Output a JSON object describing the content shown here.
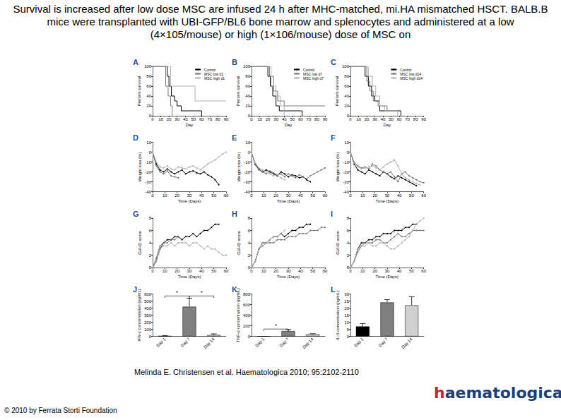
{
  "title": "Survival is increased after low dose MSC are infused 24 h after MHC-matched, mi.HA mismatched HSCT. BALB.B mice were transplanted with UBI-GFP/BL6 bone marrow and splenocytes and administered at a low (4×105/mouse) or high (1×106/mouse) dose of MSC on",
  "citation": "Melinda E. Christensen et al. Haematologica 2010; 95:2102-2110",
  "copyright": "© 2010 by Ferrata Storti Foundation",
  "logo": "haematologica",
  "chart_data": [
    {
      "panel": "A",
      "type": "step",
      "x_label": "Day",
      "y_label": "Percent survival",
      "xlim": [
        0,
        90
      ],
      "xticks": [
        0,
        10,
        20,
        30,
        40,
        50,
        60,
        70,
        80,
        90
      ],
      "ylim": [
        0,
        100
      ],
      "yticks": [
        0,
        20,
        40,
        60,
        80,
        100
      ],
      "legend": "upper right",
      "series": [
        {
          "name": "Control",
          "color": "#000000",
          "x": [
            0,
            15,
            18,
            20,
            23,
            27,
            30,
            35,
            58,
            60
          ],
          "values": [
            100,
            100,
            80,
            60,
            40,
            30,
            20,
            10,
            10,
            0
          ]
        },
        {
          "name": "MSC low d1",
          "color": "#777777",
          "x": [
            0,
            13,
            16,
            19,
            22,
            24
          ],
          "values": [
            100,
            100,
            60,
            40,
            20,
            0
          ]
        },
        {
          "name": "MSC high d1",
          "color": "#b0b0b0",
          "x": [
            0,
            18,
            22,
            50,
            52,
            90
          ],
          "values": [
            100,
            100,
            60,
            60,
            30,
            30
          ]
        }
      ]
    },
    {
      "panel": "B",
      "type": "step",
      "x_label": "Day",
      "y_label": "Percent survival",
      "xlim": [
        0,
        90
      ],
      "xticks": [
        0,
        10,
        20,
        30,
        40,
        50,
        60,
        70,
        80,
        90
      ],
      "ylim": [
        0,
        100
      ],
      "yticks": [
        0,
        20,
        40,
        60,
        80,
        100
      ],
      "legend": "upper right",
      "series": [
        {
          "name": "Control",
          "color": "#000000",
          "x": [
            0,
            15,
            20,
            23,
            26,
            30,
            34,
            60,
            62
          ],
          "values": [
            100,
            100,
            80,
            60,
            40,
            20,
            10,
            10,
            0
          ]
        },
        {
          "name": "MSC low d7",
          "color": "#777777",
          "x": [
            0,
            18,
            22,
            27,
            32,
            40,
            50,
            90
          ],
          "values": [
            100,
            100,
            80,
            50,
            30,
            20,
            20,
            20
          ]
        },
        {
          "name": "MSC high d7",
          "color": "#b0b0b0",
          "x": [
            0,
            20,
            24,
            30,
            35,
            40
          ],
          "values": [
            100,
            100,
            60,
            40,
            20,
            0
          ]
        }
      ]
    },
    {
      "panel": "C",
      "type": "step",
      "x_label": "Day",
      "y_label": "Percent survival",
      "xlim": [
        0,
        90
      ],
      "xticks": [
        0,
        10,
        20,
        30,
        40,
        50,
        60,
        70,
        80,
        90
      ],
      "ylim": [
        0,
        100
      ],
      "yticks": [
        0,
        20,
        40,
        60,
        80,
        100
      ],
      "legend": "upper right",
      "series": [
        {
          "name": "Control",
          "color": "#000000",
          "x": [
            0,
            14,
            18,
            22,
            26,
            30,
            36,
            60,
            62
          ],
          "values": [
            100,
            100,
            80,
            60,
            40,
            30,
            10,
            10,
            0
          ]
        },
        {
          "name": "MSC low d14",
          "color": "#777777",
          "x": [
            0,
            16,
            20,
            24,
            28,
            34,
            45,
            60
          ],
          "values": [
            100,
            100,
            70,
            50,
            30,
            20,
            10,
            10
          ]
        },
        {
          "name": "MSC high d14",
          "color": "#b0b0b0",
          "x": [
            0,
            18,
            22,
            27,
            31,
            36,
            42,
            55,
            58
          ],
          "values": [
            100,
            100,
            80,
            60,
            40,
            20,
            10,
            10,
            0
          ]
        }
      ]
    },
    {
      "panel": "D",
      "type": "line",
      "marker": "circle",
      "x_label": "Time (Days)",
      "y_label": "Weight loss (%)",
      "xlim": [
        0,
        60
      ],
      "xticks": [
        0,
        10,
        20,
        30,
        40,
        50,
        60
      ],
      "ylim": [
        -40,
        10
      ],
      "yticks": [
        -40,
        -30,
        -20,
        -10,
        0,
        10
      ],
      "x": [
        0,
        3,
        6,
        9,
        12,
        15,
        18,
        21,
        24,
        27,
        30,
        33,
        36,
        39,
        42,
        45,
        48,
        51,
        54,
        57,
        60
      ],
      "series": [
        {
          "color": "#000000",
          "values": [
            0,
            -12,
            -18,
            -20,
            -17,
            -20,
            -22,
            -20,
            -18,
            -22,
            -20,
            -19,
            -21,
            -22,
            -20,
            -23,
            -25,
            -28,
            -33,
            null,
            null
          ]
        },
        {
          "color": "#777777",
          "values": [
            0,
            -14,
            -20,
            -22,
            -19,
            -24,
            -25,
            -26,
            null,
            null,
            null,
            null,
            null,
            null,
            null,
            null,
            null,
            null,
            null,
            null,
            null
          ]
        },
        {
          "color": "#b0b0b0",
          "values": [
            0,
            -10,
            -15,
            -16,
            -14,
            -17,
            -18,
            -15,
            -16,
            -17,
            -15,
            -14,
            -16,
            -18,
            -15,
            -12,
            -10,
            -8,
            -5,
            -2,
            0
          ]
        }
      ]
    },
    {
      "panel": "E",
      "type": "line",
      "marker": "circle",
      "x_label": "Time (Days)",
      "y_label": "Weight loss (%)",
      "xlim": [
        0,
        60
      ],
      "xticks": [
        0,
        10,
        20,
        30,
        40,
        50,
        60
      ],
      "ylim": [
        -40,
        10
      ],
      "yticks": [
        -40,
        -30,
        -20,
        -10,
        0,
        10
      ],
      "x": [
        0,
        3,
        6,
        9,
        12,
        15,
        18,
        21,
        24,
        27,
        30,
        33,
        36,
        39,
        42,
        45,
        48,
        51,
        54,
        57,
        60
      ],
      "series": [
        {
          "color": "#000000",
          "values": [
            0,
            -12,
            -17,
            -20,
            -18,
            -20,
            -22,
            -24,
            -20,
            -22,
            -25,
            -23,
            -24,
            -26,
            -25,
            -28,
            -30,
            null,
            null,
            null,
            null
          ]
        },
        {
          "color": "#777777",
          "values": [
            0,
            -13,
            -18,
            -20,
            -22,
            -19,
            -21,
            -23,
            -22,
            -25,
            -22,
            -24,
            -26,
            -23,
            -25,
            -27,
            -24,
            -22,
            -20,
            -18,
            -16
          ]
        },
        {
          "color": "#b0b0b0",
          "values": [
            0,
            -11,
            -16,
            -18,
            -20,
            -22,
            -24,
            -23,
            -26,
            -28,
            null,
            null,
            null,
            null,
            null,
            null,
            null,
            null,
            null,
            null,
            null
          ]
        }
      ]
    },
    {
      "panel": "F",
      "type": "line",
      "marker": "circle",
      "x_label": "Time (Days)",
      "y_label": "Weight loss (%)",
      "xlim": [
        0,
        60
      ],
      "xticks": [
        0,
        10,
        20,
        30,
        40,
        50,
        60
      ],
      "ylim": [
        -40,
        10
      ],
      "yticks": [
        -40,
        -30,
        -20,
        -10,
        0,
        10
      ],
      "x": [
        0,
        3,
        6,
        9,
        12,
        15,
        18,
        21,
        24,
        27,
        30,
        33,
        36,
        39,
        42,
        45,
        48,
        51,
        54,
        57,
        60
      ],
      "series": [
        {
          "color": "#000000",
          "values": [
            0,
            -12,
            -18,
            -20,
            -22,
            -18,
            -20,
            -22,
            -24,
            -20,
            -22,
            -25,
            -27,
            -24,
            -26,
            -28,
            -30,
            -32,
            -34,
            null,
            null
          ]
        },
        {
          "color": "#777777",
          "values": [
            0,
            -10,
            -14,
            -16,
            -15,
            -17,
            -12,
            -14,
            -18,
            -20,
            -22,
            -20,
            -25,
            -30,
            -22,
            -20,
            -24,
            -26,
            -28,
            -30,
            -31
          ]
        },
        {
          "color": "#b0b0b0",
          "values": [
            0,
            -11,
            -15,
            -17,
            -16,
            -15,
            -14,
            -16,
            -18,
            -15,
            -12,
            -10,
            -8,
            -14,
            -22,
            -26,
            -28,
            -30,
            -32,
            -33,
            null
          ]
        }
      ]
    },
    {
      "panel": "G",
      "type": "line",
      "marker": "circle",
      "x_label": "Time (Days)",
      "y_label": "GVHD score",
      "xlim": [
        0,
        60
      ],
      "xticks": [
        0,
        10,
        20,
        30,
        40,
        50,
        60
      ],
      "ylim": [
        0,
        8
      ],
      "yticks": [
        0,
        2,
        4,
        6,
        8
      ],
      "x": [
        0,
        3,
        6,
        9,
        12,
        15,
        18,
        21,
        24,
        27,
        30,
        33,
        36,
        39,
        42,
        45,
        48,
        51,
        54,
        57,
        60
      ],
      "series": [
        {
          "color": "#000000",
          "values": [
            0,
            1,
            3,
            4,
            4.5,
            4.5,
            5,
            5,
            4.5,
            5,
            5,
            5.5,
            5,
            5.5,
            6,
            6,
            6.5,
            7,
            7,
            null,
            null
          ]
        },
        {
          "color": "#777777",
          "values": [
            0,
            1.5,
            3.5,
            4,
            4,
            4.5,
            4.5,
            5,
            null,
            null,
            null,
            null,
            null,
            null,
            null,
            null,
            null,
            null,
            null,
            null,
            null
          ]
        },
        {
          "color": "#b0b0b0",
          "values": [
            0,
            1,
            3,
            3.5,
            3.5,
            4,
            3.5,
            4,
            4,
            4,
            3.5,
            4,
            4,
            3.5,
            3,
            3.5,
            3,
            3,
            2.5,
            2,
            2
          ]
        }
      ]
    },
    {
      "panel": "H",
      "type": "line",
      "marker": "circle",
      "x_label": "Time (Days)",
      "y_label": "GVHD score",
      "xlim": [
        0,
        60
      ],
      "xticks": [
        0,
        10,
        20,
        30,
        40,
        50,
        60
      ],
      "ylim": [
        0,
        8
      ],
      "yticks": [
        0,
        2,
        4,
        6,
        8
      ],
      "x": [
        0,
        3,
        6,
        9,
        12,
        15,
        18,
        21,
        24,
        27,
        30,
        33,
        36,
        39,
        42,
        45,
        48,
        51,
        54,
        57,
        60
      ],
      "series": [
        {
          "color": "#000000",
          "values": [
            0,
            1,
            3,
            4,
            4,
            4.5,
            5,
            5,
            5.5,
            5,
            5.5,
            6,
            6,
            6.5,
            6.5,
            7,
            7,
            null,
            null,
            null,
            null
          ]
        },
        {
          "color": "#777777",
          "values": [
            0,
            1,
            3,
            3.5,
            4,
            4,
            4,
            4.5,
            4.5,
            4.5,
            5,
            5,
            5,
            5.5,
            5.5,
            5.5,
            6,
            6,
            6,
            6.5,
            6.5
          ]
        },
        {
          "color": "#b0b0b0",
          "values": [
            0,
            1,
            3,
            4,
            4,
            4.5,
            5,
            5,
            5.5,
            6,
            null,
            null,
            null,
            null,
            null,
            null,
            null,
            null,
            null,
            null,
            null
          ]
        }
      ]
    },
    {
      "panel": "I",
      "type": "line",
      "marker": "circle",
      "x_label": "Time (Days)",
      "y_label": "GVHD score",
      "xlim": [
        0,
        60
      ],
      "xticks": [
        0,
        10,
        20,
        30,
        40,
        50,
        60
      ],
      "ylim": [
        0,
        8
      ],
      "yticks": [
        0,
        2,
        4,
        6,
        8
      ],
      "x": [
        0,
        3,
        6,
        9,
        12,
        15,
        18,
        21,
        24,
        27,
        30,
        33,
        36,
        39,
        42,
        45,
        48,
        51,
        54,
        57,
        60
      ],
      "series": [
        {
          "color": "#000000",
          "values": [
            0,
            1,
            3,
            4,
            4,
            4.5,
            4.5,
            5,
            5,
            5.5,
            5.5,
            5.5,
            6,
            6,
            6,
            6.5,
            6.5,
            7,
            7,
            null,
            null
          ]
        },
        {
          "color": "#777777",
          "values": [
            0,
            1,
            2.5,
            3.5,
            4,
            4,
            4,
            4.5,
            4.5,
            4,
            4,
            4.5,
            5,
            5.5,
            5,
            5,
            5.5,
            6,
            6,
            6,
            6
          ]
        },
        {
          "color": "#b0b0b0",
          "values": [
            0,
            1,
            3,
            3.5,
            3.5,
            4,
            3.5,
            3.5,
            4,
            4,
            3.5,
            3,
            3,
            3.5,
            4,
            4.5,
            5,
            6,
            7,
            7.5,
            8
          ]
        }
      ]
    },
    {
      "panel": "J",
      "type": "bar",
      "y_label": "IFN-γ concentration (pg/mL)",
      "categories": [
        "Day 1",
        "Day 7",
        "Day 14"
      ],
      "values": [
        5,
        420,
        20
      ],
      "errors": [
        5,
        120,
        15
      ],
      "colors": [
        "#000000",
        "#808080",
        "#d0d0d0"
      ],
      "ylim": [
        0,
        600
      ],
      "yticks": [
        0,
        100,
        200,
        300,
        400,
        500,
        600
      ],
      "significance": [
        {
          "from": "Day 1",
          "to": "Day 7",
          "label": "*"
        },
        {
          "from": "Day 7",
          "to": "Day 14",
          "label": "*"
        }
      ]
    },
    {
      "panel": "K",
      "type": "bar",
      "y_label": "TNF-α concentration (pg/mL)",
      "categories": [
        "Day 1",
        "Day 7",
        "Day 14"
      ],
      "values": [
        0,
        100,
        40
      ],
      "errors": [
        0,
        30,
        10
      ],
      "colors": [
        "#000000",
        "#808080",
        "#d0d0d0"
      ],
      "ylim": [
        0,
        800
      ],
      "yticks": [
        0,
        200,
        400,
        600,
        800
      ],
      "significance": [
        {
          "from": "Day 1",
          "to": "Day 7",
          "label": "*"
        }
      ]
    },
    {
      "panel": "L",
      "type": "bar",
      "y_label": "IL-6 concentration (pg/mL)",
      "categories": [
        "Day 1",
        "Day 7",
        "Day 14"
      ],
      "values": [
        7,
        24,
        22
      ],
      "errors": [
        2,
        2,
        6
      ],
      "colors": [
        "#000000",
        "#808080",
        "#d0d0d0"
      ],
      "ylim": [
        0,
        30
      ],
      "yticks": [
        0,
        5,
        10,
        15,
        20,
        25,
        30
      ]
    }
  ]
}
